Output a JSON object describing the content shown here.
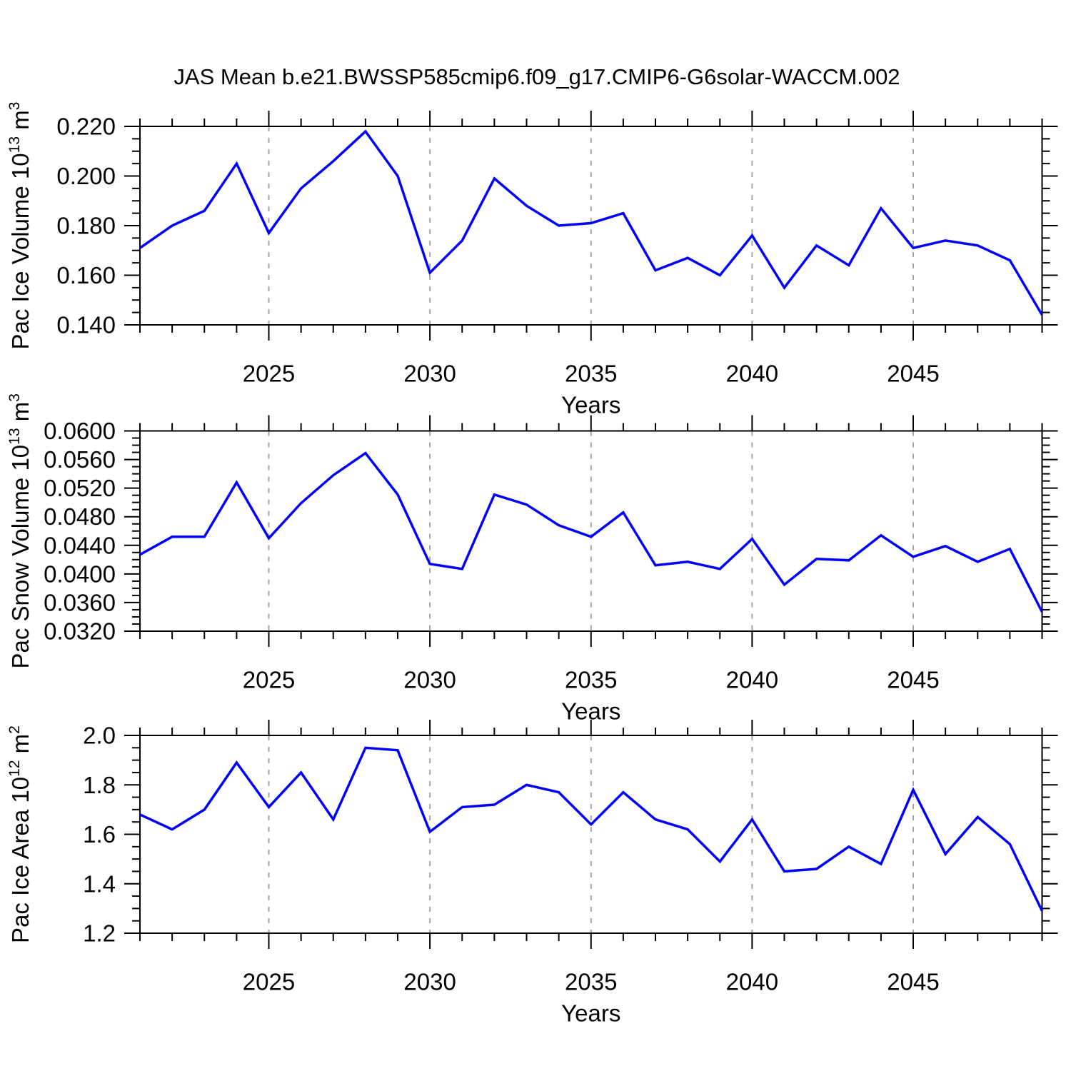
{
  "figure": {
    "title": "JAS Mean b.e21.BWSSP585cmip6.f09_g17.CMIP6-G6solar-WACCM.002",
    "background": "#ffffff",
    "line_color": "#0000ff",
    "axis_color": "#000000",
    "grid_color": "#a6a6a6"
  },
  "chart_data": [
    {
      "type": "line",
      "panel": "top",
      "xlabel": "Years",
      "ylabel": "Pac Ice Volume 10^13 m^3",
      "ylabel_rich": [
        {
          "t": "Pac Ice Volume 10",
          "sup": false
        },
        {
          "t": "13",
          "sup": true
        },
        {
          "t": " m",
          "sup": false
        },
        {
          "t": "3",
          "sup": true
        }
      ],
      "x": [
        2021,
        2022,
        2023,
        2024,
        2025,
        2026,
        2027,
        2028,
        2029,
        2030,
        2031,
        2032,
        2033,
        2034,
        2035,
        2036,
        2037,
        2038,
        2039,
        2040,
        2041,
        2042,
        2043,
        2044,
        2045,
        2046,
        2047,
        2048,
        2049
      ],
      "series": [
        {
          "name": "Pac Ice Volume",
          "values": [
            0.171,
            0.18,
            0.186,
            0.205,
            0.177,
            0.195,
            0.206,
            0.218,
            0.2,
            0.161,
            0.174,
            0.199,
            0.188,
            0.18,
            0.181,
            0.185,
            0.162,
            0.167,
            0.16,
            0.176,
            0.155,
            0.172,
            0.164,
            0.187,
            0.171,
            0.174,
            0.172,
            0.166,
            0.144
          ]
        }
      ],
      "xlim": [
        2021,
        2049
      ],
      "ylim": [
        0.14,
        0.22
      ],
      "xticks": [
        2025,
        2030,
        2035,
        2040,
        2045
      ],
      "xtick_labels": [
        "2025",
        "2030",
        "2035",
        "2040",
        "2045"
      ],
      "yticks": [
        0.14,
        0.16,
        0.18,
        0.2,
        0.22
      ],
      "ytick_labels": [
        "0.140",
        "0.160",
        "0.180",
        "0.200",
        "0.220"
      ],
      "y_minor_step": 0.005,
      "x_minor_step": 1,
      "grid": "vertical-dashed-at-major-xticks",
      "legend": "none"
    },
    {
      "type": "line",
      "panel": "middle",
      "xlabel": "Years",
      "ylabel": "Pac Snow Volume 10^13 m^3",
      "ylabel_rich": [
        {
          "t": "Pac Snow Volume 10",
          "sup": false
        },
        {
          "t": "13",
          "sup": true
        },
        {
          "t": " m",
          "sup": false
        },
        {
          "t": "3",
          "sup": true
        }
      ],
      "x": [
        2021,
        2022,
        2023,
        2024,
        2025,
        2026,
        2027,
        2028,
        2029,
        2030,
        2031,
        2032,
        2033,
        2034,
        2035,
        2036,
        2037,
        2038,
        2039,
        2040,
        2041,
        2042,
        2043,
        2044,
        2045,
        2046,
        2047,
        2048,
        2049
      ],
      "series": [
        {
          "name": "Pac Snow Volume",
          "values": [
            0.0427,
            0.0452,
            0.0452,
            0.0528,
            0.045,
            0.0499,
            0.0538,
            0.0569,
            0.0511,
            0.0414,
            0.0407,
            0.0511,
            0.0497,
            0.0468,
            0.0452,
            0.0486,
            0.0412,
            0.0417,
            0.0407,
            0.0449,
            0.0385,
            0.0421,
            0.0419,
            0.0454,
            0.0424,
            0.0439,
            0.0417,
            0.0435,
            0.0347
          ]
        }
      ],
      "xlim": [
        2021,
        2049
      ],
      "ylim": [
        0.032,
        0.06
      ],
      "xticks": [
        2025,
        2030,
        2035,
        2040,
        2045
      ],
      "xtick_labels": [
        "2025",
        "2030",
        "2035",
        "2040",
        "2045"
      ],
      "yticks": [
        0.032,
        0.036,
        0.04,
        0.044,
        0.048,
        0.052,
        0.056,
        0.06
      ],
      "ytick_labels": [
        "0.0320",
        "0.0360",
        "0.0400",
        "0.0440",
        "0.0480",
        "0.0520",
        "0.0560",
        "0.0600"
      ],
      "y_minor_step": 0.001,
      "x_minor_step": 1,
      "grid": "vertical-dashed-at-major-xticks",
      "legend": "none"
    },
    {
      "type": "line",
      "panel": "bottom",
      "xlabel": "Years",
      "ylabel": "Pac Ice Area 10^12 m^2",
      "ylabel_rich": [
        {
          "t": "Pac Ice Area 10",
          "sup": false
        },
        {
          "t": "12",
          "sup": true
        },
        {
          "t": " m",
          "sup": false
        },
        {
          "t": "2",
          "sup": true
        }
      ],
      "x": [
        2021,
        2022,
        2023,
        2024,
        2025,
        2026,
        2027,
        2028,
        2029,
        2030,
        2031,
        2032,
        2033,
        2034,
        2035,
        2036,
        2037,
        2038,
        2039,
        2040,
        2041,
        2042,
        2043,
        2044,
        2045,
        2046,
        2047,
        2048,
        2049
      ],
      "series": [
        {
          "name": "Pac Ice Area",
          "values": [
            1.68,
            1.62,
            1.7,
            1.89,
            1.71,
            1.85,
            1.66,
            1.95,
            1.94,
            1.61,
            1.71,
            1.72,
            1.8,
            1.77,
            1.64,
            1.77,
            1.66,
            1.62,
            1.49,
            1.66,
            1.45,
            1.46,
            1.55,
            1.48,
            1.78,
            1.52,
            1.67,
            1.56,
            1.29
          ]
        }
      ],
      "xlim": [
        2021,
        2049
      ],
      "ylim": [
        1.2,
        2.0
      ],
      "xticks": [
        2025,
        2030,
        2035,
        2040,
        2045
      ],
      "xtick_labels": [
        "2025",
        "2030",
        "2035",
        "2040",
        "2045"
      ],
      "yticks": [
        1.2,
        1.4,
        1.6,
        1.8,
        2.0
      ],
      "ytick_labels": [
        "1.2",
        "1.4",
        "1.6",
        "1.8",
        "2.0"
      ],
      "y_minor_step": 0.05,
      "x_minor_step": 1,
      "grid": "vertical-dashed-at-major-xticks",
      "legend": "none"
    }
  ]
}
